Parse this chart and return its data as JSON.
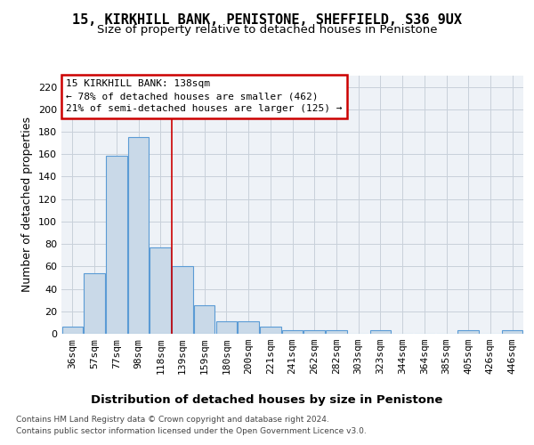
{
  "title": "15, KIRKHILL BANK, PENISTONE, SHEFFIELD, S36 9UX",
  "subtitle": "Size of property relative to detached houses in Penistone",
  "xlabel": "Distribution of detached houses by size in Penistone",
  "ylabel": "Number of detached properties",
  "categories": [
    "36sqm",
    "57sqm",
    "77sqm",
    "98sqm",
    "118sqm",
    "139sqm",
    "159sqm",
    "180sqm",
    "200sqm",
    "221sqm",
    "241sqm",
    "262sqm",
    "282sqm",
    "303sqm",
    "323sqm",
    "344sqm",
    "364sqm",
    "385sqm",
    "405sqm",
    "426sqm",
    "446sqm"
  ],
  "values": [
    6,
    54,
    159,
    175,
    77,
    60,
    25,
    11,
    11,
    6,
    3,
    3,
    3,
    0,
    3,
    0,
    0,
    0,
    3,
    0,
    3
  ],
  "bar_color": "#c9d9e8",
  "bar_edge_color": "#5b9bd5",
  "vline_x": 5,
  "vline_color": "#cc0000",
  "ylim": [
    0,
    230
  ],
  "yticks": [
    0,
    20,
    40,
    60,
    80,
    100,
    120,
    140,
    160,
    180,
    200,
    220
  ],
  "annotation_text": "15 KIRKHILL BANK: 138sqm\n← 78% of detached houses are smaller (462)\n21% of semi-detached houses are larger (125) →",
  "annotation_box_color": "#ffffff",
  "annotation_box_edge": "#cc0000",
  "footer_line1": "Contains HM Land Registry data © Crown copyright and database right 2024.",
  "footer_line2": "Contains public sector information licensed under the Open Government Licence v3.0.",
  "plot_bg_color": "#eef2f7",
  "grid_color": "#c8d0da",
  "title_fontsize": 11,
  "subtitle_fontsize": 9.5,
  "tick_fontsize": 8,
  "ylabel_fontsize": 9,
  "xlabel_fontsize": 9.5
}
